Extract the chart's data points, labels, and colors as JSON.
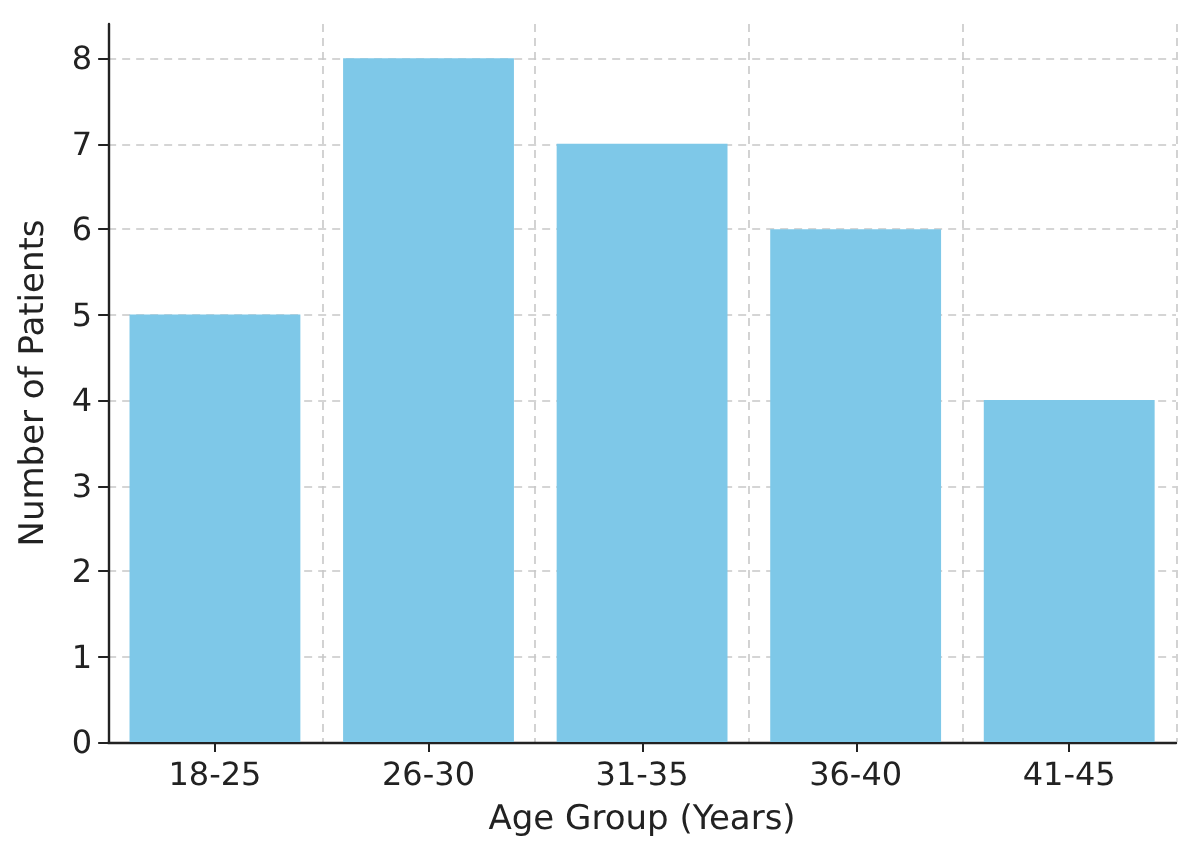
{
  "chart_data": {
    "type": "bar",
    "categories": [
      "18-25",
      "26-30",
      "31-35",
      "36-40",
      "41-45"
    ],
    "values": [
      5,
      8,
      7,
      6,
      4
    ],
    "color": "#7ec8e8",
    "xlabel": "Age Group (Years)",
    "ylabel": "Number of Patients",
    "ylim": [
      0,
      8.4
    ],
    "yticks": [
      0,
      1,
      2,
      3,
      4,
      5,
      6,
      7,
      8
    ],
    "grid": true
  }
}
